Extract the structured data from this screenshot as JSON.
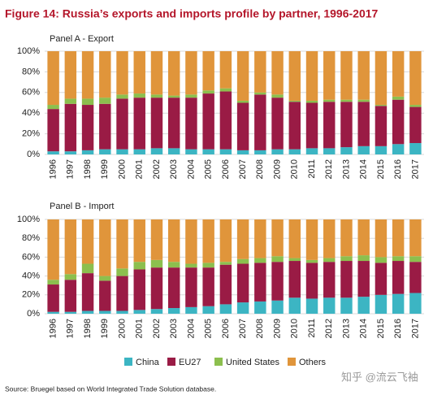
{
  "title": "Figure 14: Russia’s exports and imports profile by partner, 1996-2017",
  "source": "Source: Bruegel based on World Integrated Trade Solution database.",
  "watermark": "知乎 @流云飞袖",
  "chart_data": [
    {
      "type": "bar",
      "stacked": true,
      "title": "Panel A - Export",
      "categories": [
        "1996",
        "1997",
        "1998",
        "1999",
        "2000",
        "2001",
        "2002",
        "2003",
        "2004",
        "2005",
        "2006",
        "2007",
        "2008",
        "2009",
        "2010",
        "2011",
        "2012",
        "2013",
        "2014",
        "2015",
        "2016",
        "2017"
      ],
      "series": [
        {
          "name": "China",
          "color": "#3cb5c3",
          "values": [
            3,
            3,
            4,
            5,
            5,
            5,
            6,
            6,
            5,
            5,
            5,
            4,
            4,
            5,
            5,
            6,
            6,
            7,
            8,
            8,
            10,
            11
          ]
        },
        {
          "name": "EU27",
          "color": "#9a1b45",
          "values": [
            41,
            46,
            44,
            44,
            49,
            50,
            49,
            49,
            50,
            54,
            56,
            46,
            54,
            50,
            46,
            44,
            45,
            44,
            43,
            39,
            43,
            35
          ]
        },
        {
          "name": "United States",
          "color": "#8cbf4e",
          "values": [
            4,
            5,
            6,
            6,
            4,
            4,
            3,
            2,
            3,
            3,
            3,
            2,
            2,
            3,
            1,
            2,
            2,
            2,
            2,
            1,
            3,
            2
          ]
        },
        {
          "name": "Others",
          "color": "#e0953b",
          "values": [
            52,
            46,
            46,
            45,
            42,
            41,
            42,
            43,
            42,
            38,
            36,
            48,
            40,
            42,
            48,
            48,
            47,
            47,
            47,
            52,
            44,
            52
          ]
        }
      ],
      "ylim": [
        0,
        100
      ],
      "yticks": [
        {
          "value": 0,
          "label": "0%"
        },
        {
          "value": 20,
          "label": "20%"
        },
        {
          "value": 40,
          "label": "40%"
        },
        {
          "value": 60,
          "label": "60%"
        },
        {
          "value": 80,
          "label": "80%"
        },
        {
          "value": 100,
          "label": "100%"
        }
      ],
      "grid": true
    },
    {
      "type": "bar",
      "stacked": true,
      "title": "Panel B - Import",
      "categories": [
        "1996",
        "1997",
        "1998",
        "1999",
        "2000",
        "2001",
        "2002",
        "2003",
        "2004",
        "2005",
        "2006",
        "2007",
        "2008",
        "2009",
        "2010",
        "2011",
        "2012",
        "2013",
        "2014",
        "2015",
        "2016",
        "2017"
      ],
      "series": [
        {
          "name": "China",
          "color": "#3cb5c3",
          "values": [
            2,
            2,
            3,
            3,
            3,
            4,
            5,
            6,
            7,
            8,
            10,
            12,
            13,
            14,
            17,
            16,
            17,
            17,
            18,
            20,
            21,
            22
          ]
        },
        {
          "name": "EU27",
          "color": "#9a1b45",
          "values": [
            29,
            34,
            40,
            32,
            37,
            43,
            44,
            43,
            42,
            41,
            42,
            41,
            41,
            41,
            39,
            38,
            38,
            39,
            38,
            34,
            35,
            33
          ]
        },
        {
          "name": "United States",
          "color": "#8cbf4e",
          "values": [
            5,
            6,
            10,
            5,
            8,
            8,
            8,
            6,
            4,
            5,
            3,
            5,
            5,
            6,
            3,
            3,
            4,
            5,
            6,
            6,
            5,
            6
          ]
        },
        {
          "name": "Others",
          "color": "#e0953b",
          "values": [
            64,
            58,
            47,
            60,
            52,
            45,
            43,
            45,
            47,
            46,
            45,
            42,
            41,
            39,
            41,
            43,
            41,
            39,
            38,
            40,
            39,
            39
          ]
        }
      ],
      "ylim": [
        0,
        100
      ],
      "yticks": [
        {
          "value": 0,
          "label": "0%"
        },
        {
          "value": 20,
          "label": "20%"
        },
        {
          "value": 40,
          "label": "40%"
        },
        {
          "value": 60,
          "label": "60%"
        },
        {
          "value": 80,
          "label": "80%"
        },
        {
          "value": 100,
          "label": "100%"
        }
      ],
      "grid": true
    }
  ]
}
